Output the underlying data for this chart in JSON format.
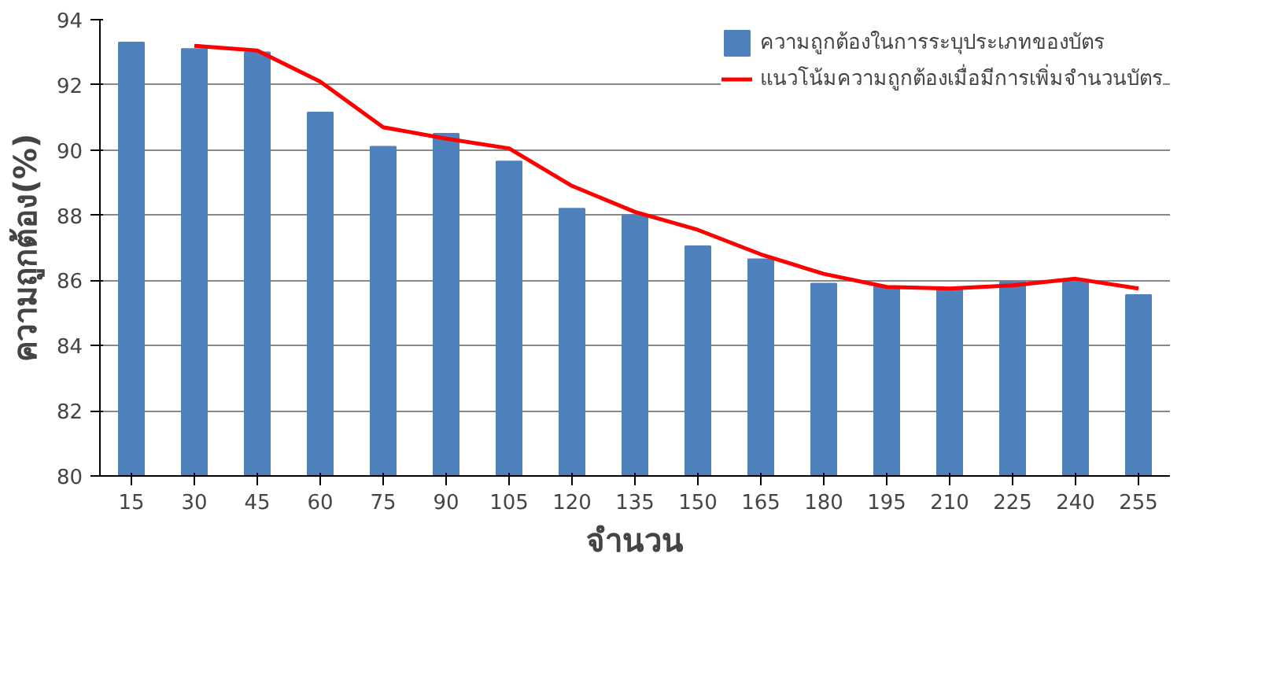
{
  "chart_data": {
    "type": "bar",
    "xlabel": "จำนวน",
    "ylabel": "ความถูกต้อง(%)",
    "categories": [
      "15",
      "30",
      "45",
      "60",
      "75",
      "90",
      "105",
      "120",
      "135",
      "150",
      "165",
      "180",
      "195",
      "210",
      "225",
      "240",
      "255"
    ],
    "series": [
      {
        "name": "ความถูกต้องในการระบุประเภทของบัตร",
        "color": "#4f81bd",
        "values": [
          93.3,
          93.1,
          93.0,
          91.15,
          90.1,
          90.5,
          89.65,
          88.2,
          88.0,
          87.05,
          86.65,
          85.9,
          85.8,
          85.75,
          85.95,
          85.95,
          85.55
        ]
      },
      {
        "name": "แนวโน้มความถูกต้องเมื่อมีการเพิ่มจำนวนบัตร",
        "type": "line",
        "color": "#ff0000",
        "values": [
          null,
          93.2,
          93.05,
          92.1,
          90.7,
          90.35,
          90.05,
          88.9,
          88.1,
          87.55,
          86.8,
          86.2,
          85.8,
          85.75,
          85.85,
          86.05,
          85.75
        ]
      }
    ],
    "ylim": [
      80,
      94
    ],
    "yticks": [
      80,
      82,
      84,
      86,
      88,
      90,
      92,
      94
    ],
    "grid": "y",
    "legend": "top right"
  }
}
